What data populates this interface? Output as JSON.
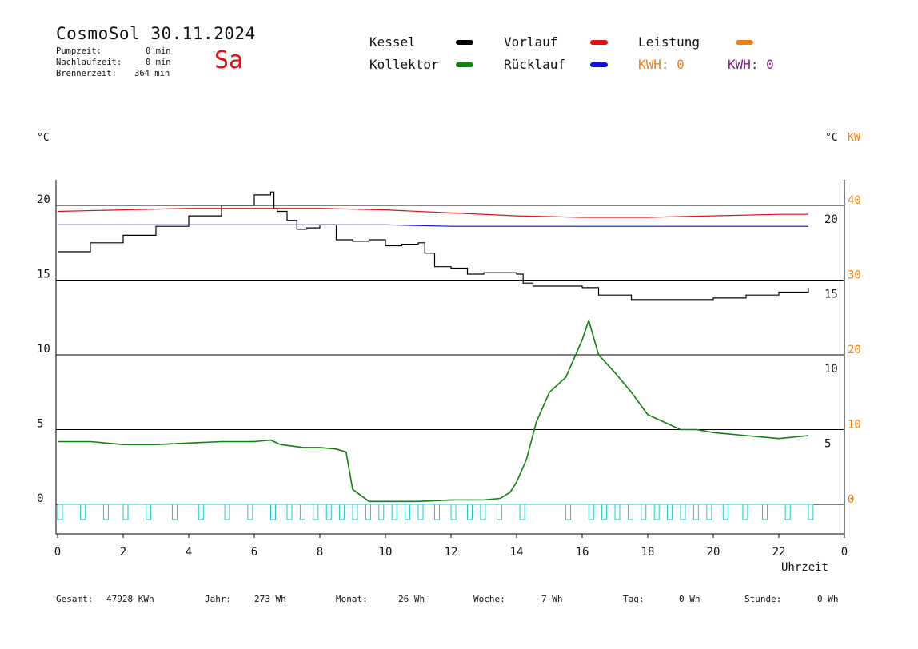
{
  "header": {
    "app_name": "CosmoSol",
    "date": "30.11.2024",
    "weekday": "Sa",
    "stats": [
      {
        "label": "Pumpzeit:",
        "value": "0 min"
      },
      {
        "label": "Nachlaufzeit:",
        "value": "0 min"
      },
      {
        "label": "Brennerzeit:",
        "value": "364 min"
      }
    ]
  },
  "legend": [
    {
      "label": "Kessel",
      "color": "#000000"
    },
    {
      "label": "Vorlauf",
      "color": "#e01010"
    },
    {
      "label": "Leistung",
      "color": "#f08010"
    },
    {
      "label": "Kollektor",
      "color": "#108010"
    },
    {
      "label": "Rücklauf",
      "color": "#1010e0"
    }
  ],
  "kwh": [
    {
      "label": "KWH: 0",
      "color": "#f08010"
    },
    {
      "label": "KWH: 0",
      "color": "#802080"
    }
  ],
  "units": {
    "left": "°C",
    "right_c": "°C",
    "right_kw": "KW"
  },
  "footer": [
    {
      "label": "Gesamt:",
      "value": "47928 KWh"
    },
    {
      "label": "Jahr:",
      "value": "273 Wh"
    },
    {
      "label": "Monat:",
      "value": "26 Wh"
    },
    {
      "label": "Woche:",
      "value": "7 Wh"
    },
    {
      "label": "Tag:",
      "value": "0 Wh"
    },
    {
      "label": "Stunde:",
      "value": "0 Wh"
    }
  ],
  "chart_data": {
    "type": "line",
    "xlabel": "Uhrzeit",
    "xlim": [
      0,
      24
    ],
    "x_ticks": [
      "0",
      "2",
      "4",
      "6",
      "8",
      "10",
      "12",
      "14",
      "16",
      "18",
      "20",
      "22",
      "0"
    ],
    "ylim": [
      -1.5,
      22
    ],
    "y_ticks_left": [
      "0",
      "5",
      "10",
      "15",
      "20"
    ],
    "y_ticks_left_values": [
      0,
      5,
      10,
      15,
      20
    ],
    "y_ticks_right_c": [
      "5",
      "10",
      "15",
      "20"
    ],
    "y_ticks_right_c_values": [
      5,
      10,
      15,
      20
    ],
    "y_ticks_right_kw": [
      "0",
      "10",
      "20",
      "30",
      "40"
    ],
    "y_ticks_right_kw_values": [
      0,
      10,
      20,
      30,
      40
    ],
    "hlines": [
      0,
      5,
      10,
      15,
      20
    ],
    "grid": true,
    "series": [
      {
        "name": "Kessel",
        "color": "#000000",
        "x": [
          0,
          1,
          2,
          3,
          4,
          5,
          6,
          6.5,
          6.6,
          6.7,
          7.0,
          7.3,
          7.6,
          8.0,
          8.5,
          9.0,
          9.5,
          10.0,
          10.5,
          11.0,
          11.2,
          11.5,
          12.0,
          12.5,
          13.0,
          13.5,
          14.0,
          14.2,
          14.5,
          15.0,
          15.5,
          16.0,
          16.5,
          17.0,
          17.5,
          18.0,
          19.0,
          20.0,
          21.0,
          22.0,
          22.9
        ],
        "y": [
          16.9,
          17.5,
          18.0,
          18.6,
          19.3,
          20.0,
          20.7,
          20.9,
          19.8,
          19.6,
          19.0,
          18.4,
          18.5,
          18.7,
          17.7,
          17.6,
          17.7,
          17.3,
          17.4,
          17.5,
          16.8,
          15.9,
          15.8,
          15.4,
          15.5,
          15.5,
          15.4,
          14.8,
          14.6,
          14.6,
          14.6,
          14.5,
          14.0,
          14.0,
          13.7,
          13.7,
          13.7,
          13.8,
          14.0,
          14.2,
          14.5
        ]
      },
      {
        "name": "Vorlauf",
        "color": "#e01010",
        "x": [
          0,
          2,
          4,
          6,
          8,
          10,
          12,
          14,
          16,
          18,
          20,
          22,
          22.9
        ],
        "y": [
          19.6,
          19.7,
          19.8,
          19.8,
          19.8,
          19.7,
          19.5,
          19.3,
          19.2,
          19.2,
          19.3,
          19.4,
          19.4
        ]
      },
      {
        "name": "Rücklauf",
        "color": "#1010e0",
        "x": [
          0,
          2,
          4,
          6,
          8,
          10,
          12,
          14,
          16,
          18,
          20,
          22,
          22.9
        ],
        "y": [
          18.7,
          18.7,
          18.7,
          18.7,
          18.7,
          18.7,
          18.6,
          18.6,
          18.6,
          18.6,
          18.6,
          18.6,
          18.6
        ]
      },
      {
        "name": "Kollektor",
        "color": "#108010",
        "x": [
          0,
          1,
          2,
          3,
          4,
          5,
          6,
          6.5,
          6.8,
          7.5,
          8.0,
          8.5,
          8.8,
          9.0,
          9.5,
          10,
          11,
          12,
          13,
          13.5,
          13.8,
          14.0,
          14.3,
          14.6,
          15.0,
          15.5,
          16.0,
          16.2,
          16.5,
          17.0,
          17.5,
          18.0,
          18.5,
          19.0,
          19.5,
          20.0,
          21.0,
          22.0,
          22.9
        ],
        "y": [
          4.2,
          4.2,
          4.0,
          4.0,
          4.1,
          4.2,
          4.2,
          4.3,
          4.0,
          3.8,
          3.8,
          3.7,
          3.5,
          1.0,
          0.2,
          0.2,
          0.2,
          0.3,
          0.3,
          0.4,
          0.8,
          1.5,
          3.0,
          5.5,
          7.5,
          8.5,
          11.0,
          12.3,
          10.0,
          8.8,
          7.5,
          6.0,
          5.5,
          5.0,
          5.0,
          4.8,
          4.6,
          4.4,
          4.6
        ]
      }
    ]
  }
}
